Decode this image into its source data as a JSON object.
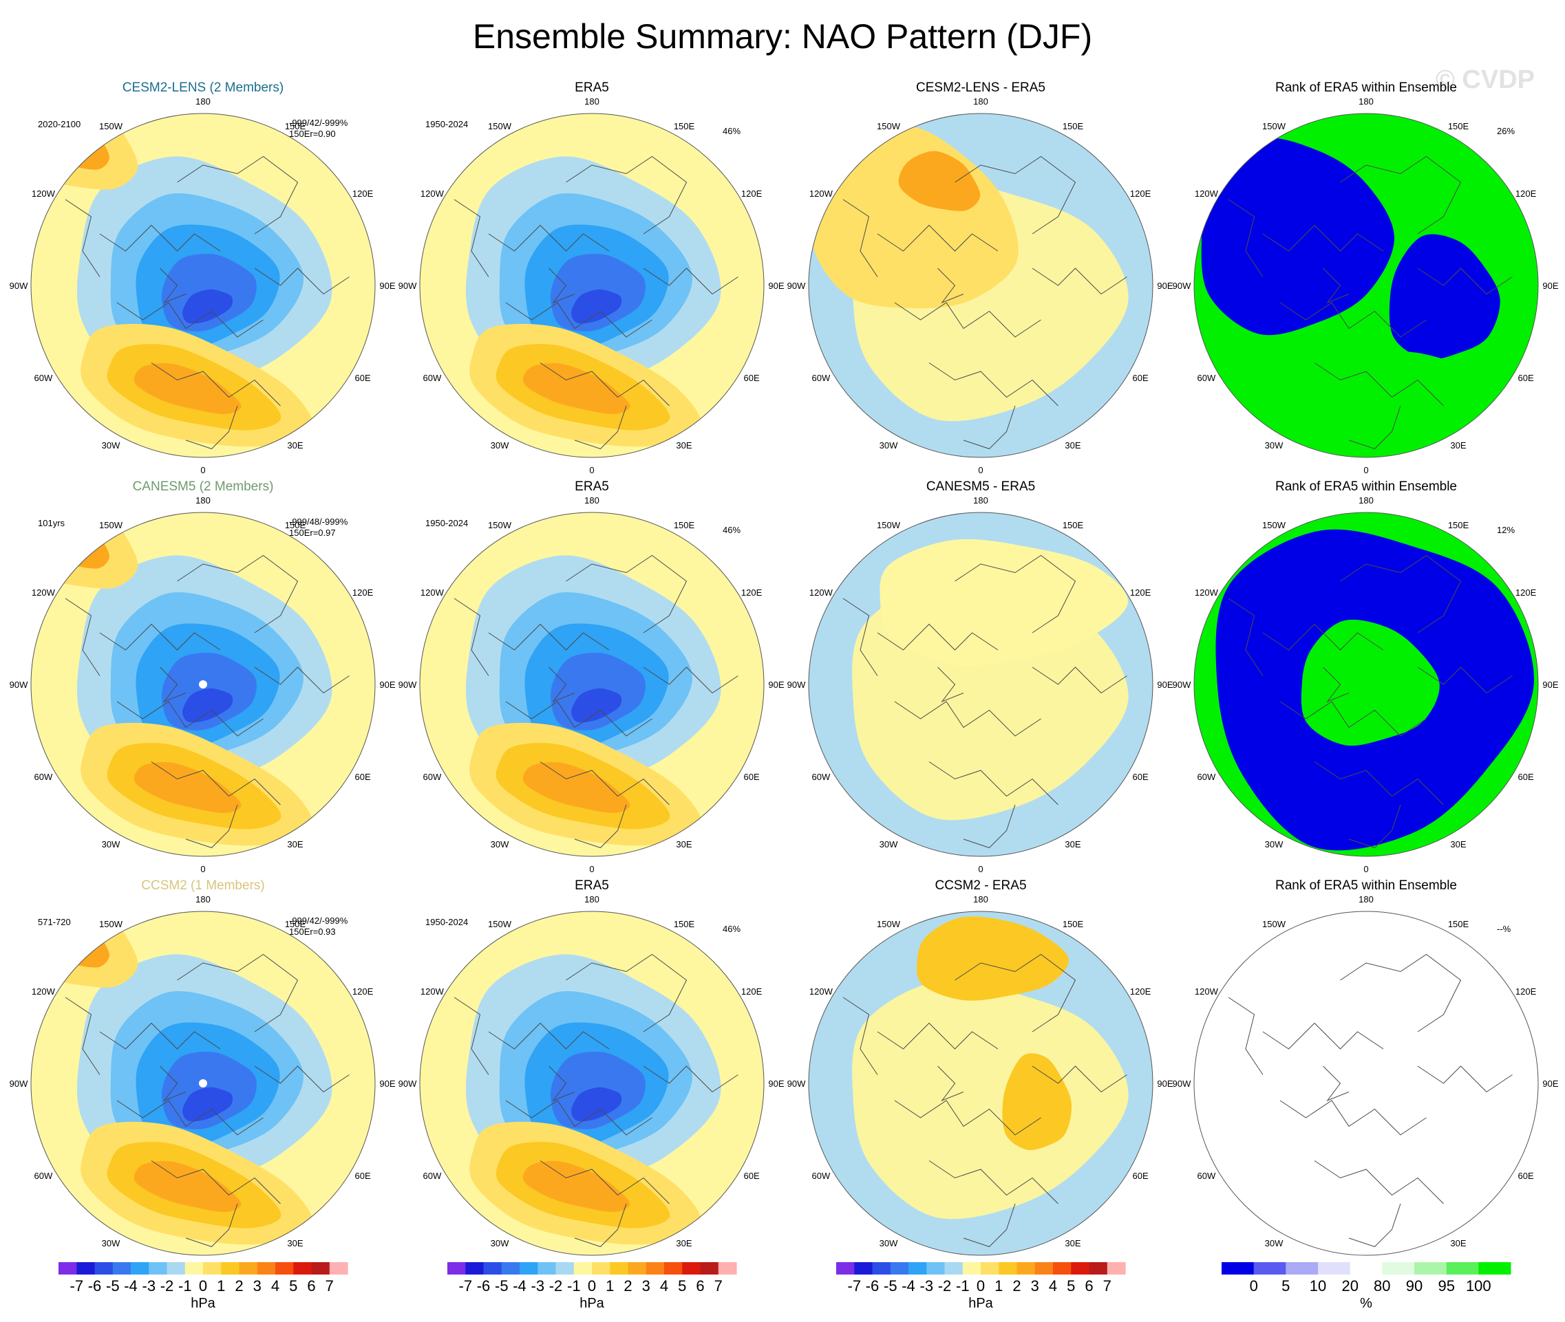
{
  "chart_data": {
    "type": "heatmap",
    "title": "Ensemble Summary: NAO Pattern (DJF)",
    "watermark": "© CVDP",
    "projection": "north polar stereographic",
    "lon_labels": [
      "180",
      "150E",
      "120E",
      "90E",
      "60E",
      "30E",
      "0",
      "30W",
      "60W",
      "90W",
      "120W",
      "150W"
    ],
    "colors": {
      "model_row1": "#1a6e8e",
      "model_row2": "#6e9a6e",
      "model_row3": "#d8c57a",
      "ocean_blue": "#b1dcf0",
      "neutral_yellow": "#fbf5a0",
      "rank_low": "#0000e6",
      "rank_high": "#00f000"
    },
    "rows": [
      {
        "model": "CESM2-LENS (2 Members)",
        "period": "2020-2100",
        "stats": "-999/42/-999%",
        "stats2": "150Er=0.90",
        "obs_title": "ERA5",
        "obs_period": "1950-2024",
        "obs_pct": "46%",
        "diff_title": "CESM2-LENS - ERA5",
        "rank_title": "Rank of ERA5 within Ensemble",
        "rank_pct": "26%"
      },
      {
        "model": "CANESM5 (2 Members)",
        "period": "101yrs",
        "stats": "-999/48/-999%",
        "stats2": "150Er=0.97",
        "obs_title": "ERA5",
        "obs_period": "1950-2024",
        "obs_pct": "46%",
        "diff_title": "CANESM5 - ERA5",
        "rank_title": "Rank of ERA5 within Ensemble",
        "rank_pct": "12%"
      },
      {
        "model": "CCSM2 (1 Members)",
        "period": "571-720",
        "stats": "-999/42/-999%",
        "stats2": "150Er=0.93",
        "obs_title": "ERA5",
        "obs_period": "1950-2024",
        "obs_pct": "46%",
        "diff_title": "CCSM2 - ERA5",
        "rank_title": "Rank of ERA5 within Ensemble",
        "rank_pct": "--%"
      }
    ],
    "colorbar_hpa": {
      "levels": [
        "-7",
        "-6",
        "-5",
        "-4",
        "-3",
        "-2",
        "-1",
        "0",
        "1",
        "2",
        "3",
        "4",
        "5",
        "6",
        "7"
      ],
      "colors": [
        "#7d2ce8",
        "#1a1ad9",
        "#2b4ee6",
        "#3a78f0",
        "#2fa3f5",
        "#6ec2f5",
        "#a9d8f2",
        "#fff7a0",
        "#ffe066",
        "#fcc823",
        "#fca81e",
        "#fb8217",
        "#f6500e",
        "#dc1a0c",
        "#bb1a1a",
        "#ffb0b0"
      ],
      "unit": "hPa"
    },
    "colorbar_rank": {
      "levels": [
        "0",
        "5",
        "10",
        "20",
        "80",
        "90",
        "95",
        "100"
      ],
      "colors": [
        "#0000e6",
        "#5a5af2",
        "#aaaaf5",
        "#e0e0fa",
        "#ffffff",
        "#e0fbe0",
        "#aaf5aa",
        "#5af05a",
        "#00f000"
      ],
      "unit": "%"
    }
  }
}
